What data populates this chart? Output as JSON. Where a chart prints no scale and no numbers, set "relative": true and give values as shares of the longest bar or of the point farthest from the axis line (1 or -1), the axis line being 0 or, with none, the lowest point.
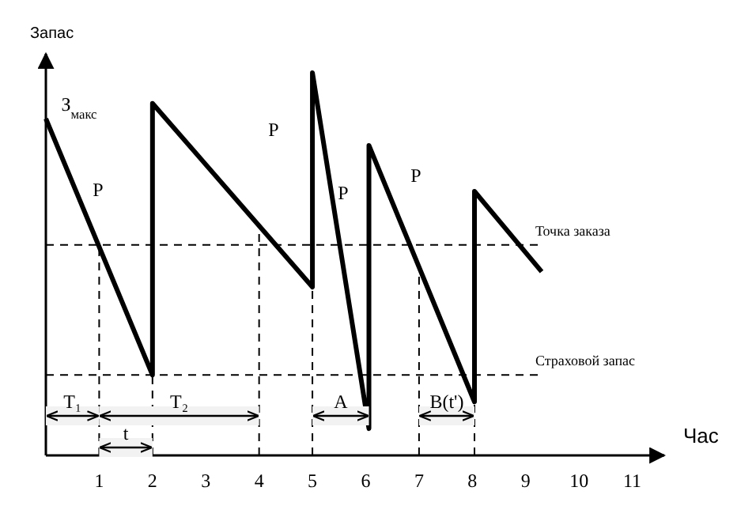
{
  "chart_data": {
    "type": "line",
    "relative": true,
    "xlabel": "Час",
    "ylabel": "Запас",
    "xlim": [
      0,
      11.6
    ],
    "xticks": [
      1,
      2,
      3,
      4,
      5,
      6,
      7,
      8,
      9,
      10,
      11
    ],
    "series": [
      {
        "color": "#000000",
        "x": [
          0,
          2,
          2,
          5,
          5,
          6.06,
          6.06,
          8.04,
          8.04,
          9.3
        ],
        "values": [
          0.88,
          0.21,
          0.92,
          0.44,
          1,
          0.07,
          0.81,
          0.14,
          0.69,
          0.48
        ]
      }
    ],
    "marker": "none",
    "ref_lines": [
      {
        "axis": "y",
        "value": 0.55,
        "label": "Точка заказа",
        "line_style": "dashed"
      },
      {
        "axis": "y",
        "value": 0.21,
        "label": "Страховой запас",
        "line_style": "dashed"
      },
      {
        "axis": "x",
        "value": 1,
        "line_style": "dashed"
      },
      {
        "axis": "x",
        "value": 2,
        "line_style": "dashed"
      },
      {
        "axis": "x",
        "value": 4,
        "line_style": "dashed"
      },
      {
        "axis": "x",
        "value": 5,
        "line_style": "dashed"
      },
      {
        "axis": "x",
        "value": 7,
        "line_style": "dashed"
      },
      {
        "axis": "x",
        "value": 8.04,
        "line_style": "dashed"
      }
    ],
    "bands": [
      {
        "axis": "x",
        "from": 0,
        "to": 1,
        "label": "T₁"
      },
      {
        "axis": "x",
        "from": 1,
        "to": 4,
        "label": "T₂"
      },
      {
        "axis": "x",
        "from": 1,
        "to": 2,
        "label": "t"
      },
      {
        "axis": "x",
        "from": 5,
        "to": 6.06,
        "label": "A"
      },
      {
        "axis": "x",
        "from": 7,
        "to": 8.04,
        "label": "B(t')"
      }
    ],
    "annotations": [
      "З$_{макс}$",
      "Р",
      "Р",
      "Р",
      "Р"
    ]
  }
}
